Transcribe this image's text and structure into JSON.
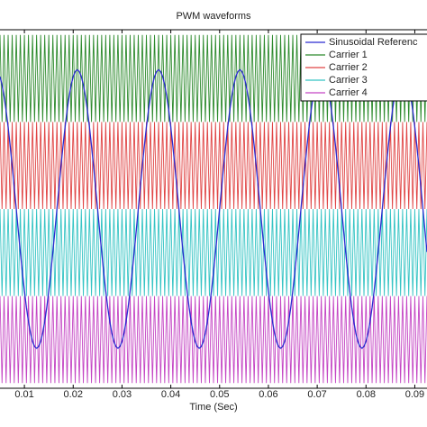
{
  "chart_data": {
    "type": "line",
    "title": "PWM waveforms",
    "xlabel": "Time (Sec)",
    "xlim": [
      0.005,
      0.0925
    ],
    "ylim": [
      -1.03,
      1.03
    ],
    "xticks": [
      0.01,
      0.02,
      0.03,
      0.04,
      0.05,
      0.06,
      0.07,
      0.08,
      0.09
    ],
    "legend": "upper right",
    "grid": false,
    "x": [
      0.005,
      0.005417,
      0.005833,
      0.00625,
      0.006667,
      0.007083,
      0.0075,
      0.007917,
      0.008333,
      0.00875,
      0.009167,
      0.009583,
      0.01,
      0.010417,
      0.010833,
      0.01125,
      0.011667,
      0.012083,
      0.0125,
      0.012917,
      0.013333,
      0.01375,
      0.014167,
      0.014583,
      0.015,
      0.015417,
      0.015833,
      0.01625,
      0.016667,
      0.017083,
      0.0175,
      0.017917,
      0.018333,
      0.01875,
      0.019167,
      0.019583,
      0.02,
      0.020417,
      0.020833,
      0.02125,
      0.021667,
      0.022083,
      0.0225,
      0.022917,
      0.023333,
      0.02375,
      0.024167,
      0.024583,
      0.025,
      0.025417,
      0.025833,
      0.02625,
      0.026667,
      0.027083,
      0.0275,
      0.027917,
      0.028333,
      0.02875,
      0.029167,
      0.029583,
      0.03,
      0.030417,
      0.030833,
      0.03125,
      0.031667,
      0.032083,
      0.0325,
      0.032917,
      0.033333,
      0.03375,
      0.034167,
      0.034583,
      0.035,
      0.035417,
      0.035833,
      0.03625,
      0.036667,
      0.037083,
      0.0375,
      0.037917,
      0.038333,
      0.03875,
      0.039167,
      0.039583,
      0.04,
      0.040417,
      0.040833,
      0.04125,
      0.041667,
      0.042083,
      0.0425,
      0.042917,
      0.043333,
      0.04375,
      0.044167,
      0.044583,
      0.045,
      0.045417,
      0.045833,
      0.04625,
      0.046667,
      0.047083,
      0.0475,
      0.047917,
      0.048333,
      0.04875,
      0.049167,
      0.049583,
      0.05,
      0.050417,
      0.050833,
      0.05125,
      0.051667,
      0.052083,
      0.0525,
      0.052917,
      0.053333,
      0.05375,
      0.054167,
      0.054583,
      0.055,
      0.055417,
      0.055833,
      0.05625,
      0.056667,
      0.057083,
      0.0575,
      0.057917,
      0.058333,
      0.05875,
      0.059167,
      0.059583,
      0.06,
      0.060417,
      0.060833,
      0.06125,
      0.061667,
      0.062083,
      0.0625,
      0.062917,
      0.063333,
      0.06375,
      0.064167,
      0.064583,
      0.065,
      0.065417,
      0.065833,
      0.06625,
      0.066667,
      0.067083,
      0.0675,
      0.067917,
      0.068333,
      0.06875,
      0.069167,
      0.069583,
      0.07,
      0.070417,
      0.070833,
      0.07125,
      0.071667,
      0.072083,
      0.0725,
      0.072917,
      0.073333,
      0.07375,
      0.074167,
      0.074583,
      0.075,
      0.075417,
      0.075833,
      0.07625,
      0.076667,
      0.077083,
      0.0775,
      0.077917,
      0.078333,
      0.07875,
      0.079167,
      0.079583,
      0.08,
      0.080417,
      0.080833,
      0.08125,
      0.081667,
      0.082083,
      0.0825,
      0.082917,
      0.083333,
      0.08375,
      0.084167,
      0.084583,
      0.085,
      0.085417,
      0.085833,
      0.08625,
      0.086667,
      0.087083,
      0.0875,
      0.087917,
      0.088333,
      0.08875,
      0.089167,
      0.089583,
      0.09,
      0.090417,
      0.090833,
      0.09125,
      0.091667,
      0.092083,
      0.0925
    ],
    "series": [
      {
        "name": "Sinusoidal Referenc",
        "color": "#2a2ad0",
        "values": [
          0.761,
          0.713,
          0.647,
          0.566,
          0.47,
          0.363,
          0.247,
          0.125,
          0,
          -0.125,
          -0.247,
          -0.363,
          -0.47,
          -0.566,
          -0.647,
          -0.713,
          -0.761,
          -0.79,
          -0.8,
          -0.79,
          -0.761,
          -0.713,
          -0.647,
          -0.566,
          -0.47,
          -0.363,
          -0.247,
          -0.125,
          0,
          0.125,
          0.247,
          0.363,
          0.47,
          0.566,
          0.647,
          0.713,
          0.761,
          0.79,
          0.8,
          0.79,
          0.761,
          0.713,
          0.647,
          0.566,
          0.47,
          0.363,
          0.247,
          0.125,
          0,
          -0.125,
          -0.247,
          -0.363,
          -0.47,
          -0.566,
          -0.647,
          -0.713,
          -0.761,
          -0.79,
          -0.8,
          -0.79,
          -0.761,
          -0.713,
          -0.647,
          -0.566,
          -0.47,
          -0.363,
          -0.247,
          -0.125,
          0,
          0.125,
          0.247,
          0.363,
          0.47,
          0.566,
          0.647,
          0.713,
          0.761,
          0.79,
          0.8,
          0.79,
          0.761,
          0.713,
          0.647,
          0.566,
          0.47,
          0.363,
          0.247,
          0.125,
          0,
          -0.125,
          -0.247,
          -0.363,
          -0.47,
          -0.566,
          -0.647,
          -0.713,
          -0.761,
          -0.79,
          -0.8,
          -0.79,
          -0.761,
          -0.713,
          -0.647,
          -0.566,
          -0.47,
          -0.363,
          -0.247,
          -0.125,
          0,
          0.125,
          0.247,
          0.363,
          0.47,
          0.566,
          0.647,
          0.713,
          0.761,
          0.79,
          0.8,
          0.79,
          0.761,
          0.713,
          0.647,
          0.566,
          0.47,
          0.363,
          0.247,
          0.125,
          0,
          -0.125,
          -0.247,
          -0.363,
          -0.47,
          -0.566,
          -0.647,
          -0.713,
          -0.761,
          -0.79,
          -0.8,
          -0.79,
          -0.761,
          -0.713,
          -0.647,
          -0.566,
          -0.47,
          -0.363,
          -0.247,
          -0.125,
          0,
          0.125,
          0.247,
          0.363,
          0.47,
          0.566,
          0.647,
          0.713,
          0.761,
          0.79,
          0.8,
          0.79,
          0.761,
          0.713,
          0.647,
          0.566,
          0.47,
          0.363,
          0.247,
          0.125,
          0,
          -0.125,
          -0.247,
          -0.363,
          -0.47,
          -0.566,
          -0.647,
          -0.713,
          -0.761,
          -0.79,
          -0.8,
          -0.79,
          -0.761,
          -0.713,
          -0.647,
          -0.566,
          -0.47,
          -0.363,
          -0.247,
          -0.125,
          0,
          0.125,
          0.247,
          0.363,
          0.47,
          0.566,
          0.647,
          0.713,
          0.761,
          0.79,
          0.8,
          0.79,
          0.761,
          0.713,
          0.647,
          0.566,
          0.47,
          0.363,
          0.247,
          0.125,
          0,
          -0.125,
          -0.247
        ]
      },
      {
        "name": "Carrier 1",
        "color": "#2e8b2e",
        "values": [
          1,
          0.5,
          1,
          0.5,
          1,
          0.5,
          1,
          0.5,
          1,
          0.5,
          1,
          0.5,
          1,
          0.5,
          1,
          0.5,
          1,
          0.5,
          1,
          0.5,
          1,
          0.5,
          1,
          0.5,
          1,
          0.5,
          1,
          0.5,
          1,
          0.5,
          1,
          0.5,
          1,
          0.5,
          1,
          0.5,
          1,
          0.5,
          1,
          0.5,
          1,
          0.5,
          1,
          0.5,
          1,
          0.5,
          1,
          0.5,
          1,
          0.5,
          1,
          0.5,
          1,
          0.5,
          1,
          0.5,
          1,
          0.5,
          1,
          0.5,
          1,
          0.5,
          1,
          0.5,
          1,
          0.5,
          1,
          0.5,
          1,
          0.5,
          1,
          0.5,
          1,
          0.5,
          1,
          0.5,
          1,
          0.5,
          1,
          0.5,
          1,
          0.5,
          1,
          0.5,
          1,
          0.5,
          1,
          0.5,
          1,
          0.5,
          1,
          0.5,
          1,
          0.5,
          1,
          0.5,
          1,
          0.5,
          1,
          0.5,
          1,
          0.5,
          1,
          0.5,
          1,
          0.5,
          1,
          0.5,
          1,
          0.5,
          1,
          0.5,
          1,
          0.5,
          1,
          0.5,
          1,
          0.5,
          1,
          0.5,
          1,
          0.5,
          1,
          0.5,
          1,
          0.5,
          1,
          0.5,
          1,
          0.5,
          1,
          0.5,
          1,
          0.5,
          1,
          0.5,
          1,
          0.5,
          1,
          0.5,
          1,
          0.5,
          1,
          0.5,
          1,
          0.5,
          1,
          0.5,
          1,
          0.5,
          1,
          0.5,
          1,
          0.5,
          1,
          0.5,
          1,
          0.5,
          1,
          0.5,
          1,
          0.5,
          1,
          0.5,
          1,
          0.5,
          1,
          0.5,
          1,
          0.5,
          1,
          0.5,
          1,
          0.5,
          1,
          0.5,
          1,
          0.5,
          1,
          0.5,
          1,
          0.5,
          1,
          0.5,
          1,
          0.5,
          1,
          0.5,
          1,
          0.5,
          1,
          0.5,
          1,
          0.5,
          1,
          0.5,
          1,
          0.5,
          1,
          0.5,
          1,
          0.5,
          1,
          0.5,
          1,
          0.5,
          1,
          0.5,
          1,
          0.5,
          1
        ]
      },
      {
        "name": "Carrier 2",
        "color": "#e04545",
        "values": [
          0.5,
          0,
          0.5,
          0,
          0.5,
          0,
          0.5,
          0,
          0.5,
          0,
          0.5,
          0,
          0.5,
          0,
          0.5,
          0,
          0.5,
          0,
          0.5,
          0,
          0.5,
          0,
          0.5,
          0,
          0.5,
          0,
          0.5,
          0,
          0.5,
          0,
          0.5,
          0,
          0.5,
          0,
          0.5,
          0,
          0.5,
          0,
          0.5,
          0,
          0.5,
          0,
          0.5,
          0,
          0.5,
          0,
          0.5,
          0,
          0.5,
          0,
          0.5,
          0,
          0.5,
          0,
          0.5,
          0,
          0.5,
          0,
          0.5,
          0,
          0.5,
          0,
          0.5,
          0,
          0.5,
          0,
          0.5,
          0,
          0.5,
          0,
          0.5,
          0,
          0.5,
          0,
          0.5,
          0,
          0.5,
          0,
          0.5,
          0,
          0.5,
          0,
          0.5,
          0,
          0.5,
          0,
          0.5,
          0,
          0.5,
          0,
          0.5,
          0,
          0.5,
          0,
          0.5,
          0,
          0.5,
          0,
          0.5,
          0,
          0.5,
          0,
          0.5,
          0,
          0.5,
          0,
          0.5,
          0,
          0.5,
          0,
          0.5,
          0,
          0.5,
          0,
          0.5,
          0,
          0.5,
          0,
          0.5,
          0,
          0.5,
          0,
          0.5,
          0,
          0.5,
          0,
          0.5,
          0,
          0.5,
          0,
          0.5,
          0,
          0.5,
          0,
          0.5,
          0,
          0.5,
          0,
          0.5,
          0,
          0.5,
          0,
          0.5,
          0,
          0.5,
          0,
          0.5,
          0,
          0.5,
          0,
          0.5,
          0,
          0.5,
          0,
          0.5,
          0,
          0.5,
          0,
          0.5,
          0,
          0.5,
          0,
          0.5,
          0,
          0.5,
          0,
          0.5,
          0,
          0.5,
          0,
          0.5,
          0,
          0.5,
          0,
          0.5,
          0,
          0.5,
          0,
          0.5,
          0,
          0.5,
          0,
          0.5,
          0,
          0.5,
          0,
          0.5,
          0,
          0.5,
          0,
          0.5,
          0,
          0.5,
          0,
          0.5,
          0,
          0.5,
          0,
          0.5,
          0,
          0.5,
          0,
          0.5,
          0,
          0.5,
          0,
          0.5,
          0,
          0.5,
          0,
          0.5
        ]
      },
      {
        "name": "Carrier 3",
        "color": "#35c4c4",
        "values": [
          0,
          -0.5,
          0,
          -0.5,
          0,
          -0.5,
          0,
          -0.5,
          0,
          -0.5,
          0,
          -0.5,
          0,
          -0.5,
          0,
          -0.5,
          0,
          -0.5,
          0,
          -0.5,
          0,
          -0.5,
          0,
          -0.5,
          0,
          -0.5,
          0,
          -0.5,
          0,
          -0.5,
          0,
          -0.5,
          0,
          -0.5,
          0,
          -0.5,
          0,
          -0.5,
          0,
          -0.5,
          0,
          -0.5,
          0,
          -0.5,
          0,
          -0.5,
          0,
          -0.5,
          0,
          -0.5,
          0,
          -0.5,
          0,
          -0.5,
          0,
          -0.5,
          0,
          -0.5,
          0,
          -0.5,
          0,
          -0.5,
          0,
          -0.5,
          0,
          -0.5,
          0,
          -0.5,
          0,
          -0.5,
          0,
          -0.5,
          0,
          -0.5,
          0,
          -0.5,
          0,
          -0.5,
          0,
          -0.5,
          0,
          -0.5,
          0,
          -0.5,
          0,
          -0.5,
          0,
          -0.5,
          0,
          -0.5,
          0,
          -0.5,
          0,
          -0.5,
          0,
          -0.5,
          0,
          -0.5,
          0,
          -0.5,
          0,
          -0.5,
          0,
          -0.5,
          0,
          -0.5,
          0,
          -0.5,
          0,
          -0.5,
          0,
          -0.5,
          0,
          -0.5,
          0,
          -0.5,
          0,
          -0.5,
          0,
          -0.5,
          0,
          -0.5,
          0,
          -0.5,
          0,
          -0.5,
          0,
          -0.5,
          0,
          -0.5,
          0,
          -0.5,
          0,
          -0.5,
          0,
          -0.5,
          0,
          -0.5,
          0,
          -0.5,
          0,
          -0.5,
          0,
          -0.5,
          0,
          -0.5,
          0,
          -0.5,
          0,
          -0.5,
          0,
          -0.5,
          0,
          -0.5,
          0,
          -0.5,
          0,
          -0.5,
          0,
          -0.5,
          0,
          -0.5,
          0,
          -0.5,
          0,
          -0.5,
          0,
          -0.5,
          0,
          -0.5,
          0,
          -0.5,
          0,
          -0.5,
          0,
          -0.5,
          0,
          -0.5,
          0,
          -0.5,
          0,
          -0.5,
          0,
          -0.5,
          0,
          -0.5,
          0,
          -0.5,
          0,
          -0.5,
          0,
          -0.5,
          0,
          -0.5,
          0,
          -0.5,
          0,
          -0.5,
          0,
          -0.5,
          0,
          -0.5,
          0,
          -0.5,
          0,
          -0.5,
          0,
          -0.5,
          0,
          -0.5,
          0
        ]
      },
      {
        "name": "Carrier 4",
        "color": "#c445c4",
        "values": [
          -0.5,
          -1,
          -0.5,
          -1,
          -0.5,
          -1,
          -0.5,
          -1,
          -0.5,
          -1,
          -0.5,
          -1,
          -0.5,
          -1,
          -0.5,
          -1,
          -0.5,
          -1,
          -0.5,
          -1,
          -0.5,
          -1,
          -0.5,
          -1,
          -0.5,
          -1,
          -0.5,
          -1,
          -0.5,
          -1,
          -0.5,
          -1,
          -0.5,
          -1,
          -0.5,
          -1,
          -0.5,
          -1,
          -0.5,
          -1,
          -0.5,
          -1,
          -0.5,
          -1,
          -0.5,
          -1,
          -0.5,
          -1,
          -0.5,
          -1,
          -0.5,
          -1,
          -0.5,
          -1,
          -0.5,
          -1,
          -0.5,
          -1,
          -0.5,
          -1,
          -0.5,
          -1,
          -0.5,
          -1,
          -0.5,
          -1,
          -0.5,
          -1,
          -0.5,
          -1,
          -0.5,
          -1,
          -0.5,
          -1,
          -0.5,
          -1,
          -0.5,
          -1,
          -0.5,
          -1,
          -0.5,
          -1,
          -0.5,
          -1,
          -0.5,
          -1,
          -0.5,
          -1,
          -0.5,
          -1,
          -0.5,
          -1,
          -0.5,
          -1,
          -0.5,
          -1,
          -0.5,
          -1,
          -0.5,
          -1,
          -0.5,
          -1,
          -0.5,
          -1,
          -0.5,
          -1,
          -0.5,
          -1,
          -0.5,
          -1,
          -0.5,
          -1,
          -0.5,
          -1,
          -0.5,
          -1,
          -0.5,
          -1,
          -0.5,
          -1,
          -0.5,
          -1,
          -0.5,
          -1,
          -0.5,
          -1,
          -0.5,
          -1,
          -0.5,
          -1,
          -0.5,
          -1,
          -0.5,
          -1,
          -0.5,
          -1,
          -0.5,
          -1,
          -0.5,
          -1,
          -0.5,
          -1,
          -0.5,
          -1,
          -0.5,
          -1,
          -0.5,
          -1,
          -0.5,
          -1,
          -0.5,
          -1,
          -0.5,
          -1,
          -0.5,
          -1,
          -0.5,
          -1,
          -0.5,
          -1,
          -0.5,
          -1,
          -0.5,
          -1,
          -0.5,
          -1,
          -0.5,
          -1,
          -0.5,
          -1,
          -0.5,
          -1,
          -0.5,
          -1,
          -0.5,
          -1,
          -0.5,
          -1,
          -0.5,
          -1,
          -0.5,
          -1,
          -0.5,
          -1,
          -0.5,
          -1,
          -0.5,
          -1,
          -0.5,
          -1,
          -0.5,
          -1,
          -0.5,
          -1,
          -0.5,
          -1,
          -0.5,
          -1,
          -0.5,
          -1,
          -0.5,
          -1,
          -0.5,
          -1,
          -0.5,
          -1,
          -0.5,
          -1,
          -0.5,
          -1,
          -0.5
        ]
      }
    ]
  }
}
